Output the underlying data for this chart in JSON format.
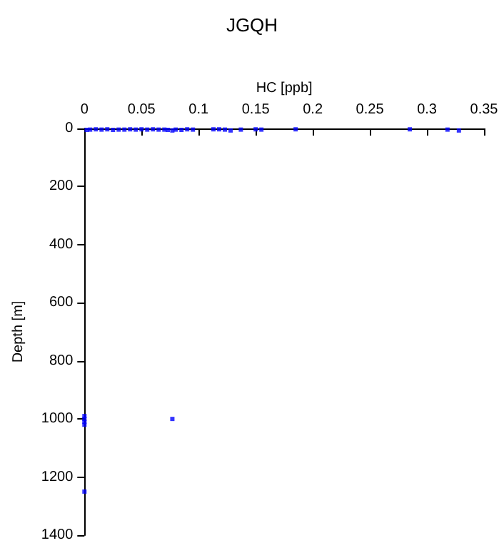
{
  "chart_data": {
    "type": "scatter",
    "title": "JGQH",
    "xlabel": "HC [ppb]",
    "ylabel": "Depth [m]",
    "x": [
      0.002,
      0.005,
      0.01,
      0.015,
      0.02,
      0.025,
      0.03,
      0.035,
      0.04,
      0.045,
      0.05,
      0.055,
      0.06,
      0.065,
      0.07,
      0.073,
      0.077,
      0.08,
      0.085,
      0.09,
      0.095,
      0.113,
      0.118,
      0.123,
      0.128,
      0.137,
      0.15,
      0.155,
      0.185,
      0.285,
      0.318,
      0.328,
      0,
      0,
      0,
      0,
      0.077,
      0
    ],
    "series": [
      {
        "color": "#0000ff",
        "values": [
          5,
          4,
          3,
          4,
          3,
          5,
          4,
          4,
          3,
          4,
          3,
          4,
          3,
          4,
          4,
          5,
          7,
          4,
          5,
          3,
          4,
          3,
          3,
          4,
          7,
          4,
          3,
          4,
          3,
          3,
          4,
          7,
          990,
          1000,
          1010,
          1020,
          1000,
          1250
        ]
      }
    ],
    "xlim": [
      0,
      0.35
    ],
    "xticks": [
      0,
      0.05,
      0.1,
      0.15,
      0.2,
      0.25,
      0.3,
      0.35
    ],
    "ylim": [
      1400,
      0
    ],
    "yticks": [
      0,
      200,
      400,
      600,
      800,
      1000,
      1200,
      1400
    ],
    "marker": "square",
    "grid": false
  }
}
